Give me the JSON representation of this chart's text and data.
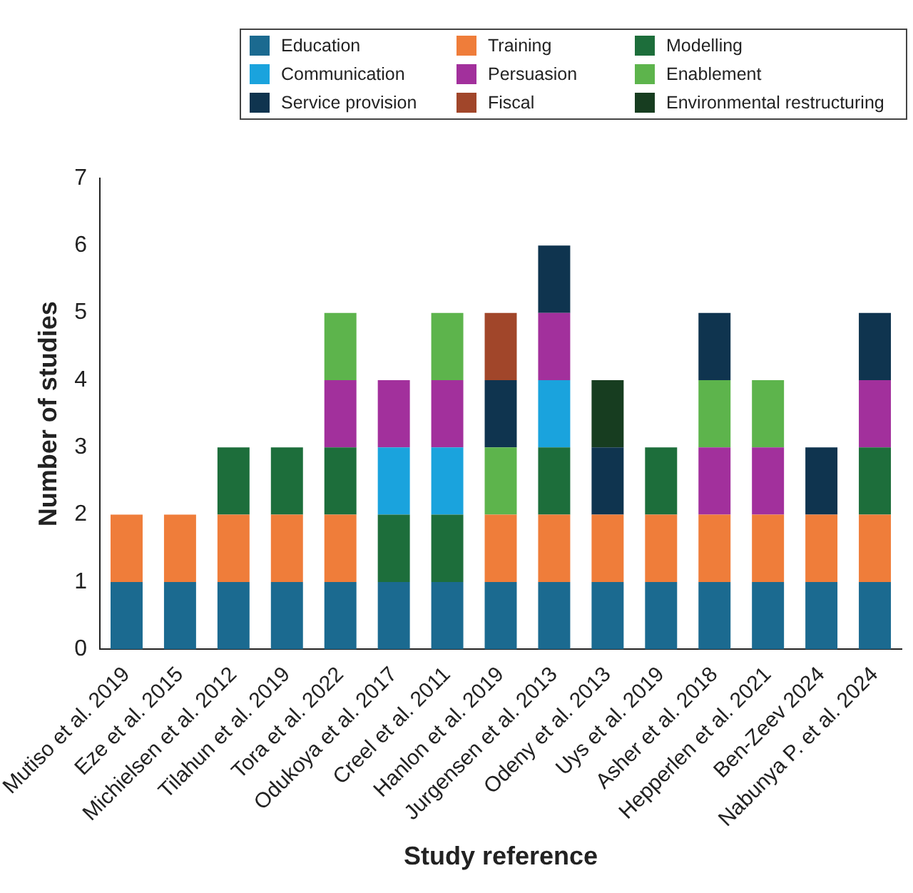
{
  "chart_data": {
    "type": "bar",
    "stacked": true,
    "xlabel": "Study reference",
    "ylabel": "Number of studies",
    "legend": "top",
    "grid": false,
    "categories": [
      "Mutiso et al. 2019",
      "Eze et al. 2015",
      "Michielsen et al. 2012",
      "Tilahun et al. 2019",
      "Tora et al. 2022",
      "Odukoya et al. 2017",
      "Creel et al. 2011",
      "Hanlon et al. 2019",
      "Jurgensen et al. 2013",
      "Odeny et al. 2013",
      "Uys et al. 2019",
      "Asher et al. 2018",
      "Hepperlen et al. 2021",
      "Ben-Zeev 2024",
      "Nabunya P. et al. 2024"
    ],
    "ylim": [
      0,
      7
    ],
    "yticks": [
      0,
      1,
      2,
      3,
      4,
      5,
      6,
      7
    ],
    "series": [
      {
        "name": "Education",
        "color": "#1b6a90",
        "values": [
          1,
          1,
          1,
          1,
          1,
          1,
          1,
          1,
          1,
          1,
          1,
          1,
          1,
          1,
          1
        ]
      },
      {
        "name": "Training",
        "color": "#ef7d3a",
        "values": [
          1,
          1,
          1,
          1,
          1,
          null,
          null,
          1,
          1,
          1,
          1,
          1,
          1,
          1,
          1
        ]
      },
      {
        "name": "Modelling",
        "color": "#1d6e3b",
        "values": [
          null,
          null,
          1,
          1,
          1,
          1,
          1,
          null,
          1,
          null,
          1,
          null,
          null,
          null,
          1
        ]
      },
      {
        "name": "Communication",
        "color": "#1aa3dd",
        "values": [
          null,
          null,
          null,
          null,
          null,
          1,
          1,
          null,
          1,
          null,
          null,
          null,
          null,
          null,
          null
        ]
      },
      {
        "name": "Persuasion",
        "color": "#a2309c",
        "values": [
          null,
          null,
          null,
          null,
          1,
          1,
          1,
          null,
          1,
          null,
          null,
          1,
          1,
          null,
          1
        ]
      },
      {
        "name": "Enablement",
        "color": "#5db44c",
        "values": [
          null,
          null,
          null,
          null,
          1,
          null,
          1,
          1,
          null,
          null,
          null,
          1,
          1,
          null,
          null
        ]
      },
      {
        "name": "Service provision",
        "color": "#0f344f",
        "values": [
          null,
          null,
          null,
          null,
          null,
          null,
          null,
          1,
          1,
          1,
          null,
          1,
          null,
          1,
          1
        ]
      },
      {
        "name": "Fiscal",
        "color": "#a1462a",
        "values": [
          null,
          null,
          null,
          null,
          null,
          null,
          null,
          1,
          null,
          null,
          null,
          null,
          null,
          null,
          null
        ]
      },
      {
        "name": "Environmental restructuring",
        "color": "#173d20",
        "values": [
          null,
          null,
          null,
          null,
          null,
          null,
          null,
          null,
          null,
          1,
          null,
          null,
          null,
          null,
          null
        ]
      }
    ]
  }
}
